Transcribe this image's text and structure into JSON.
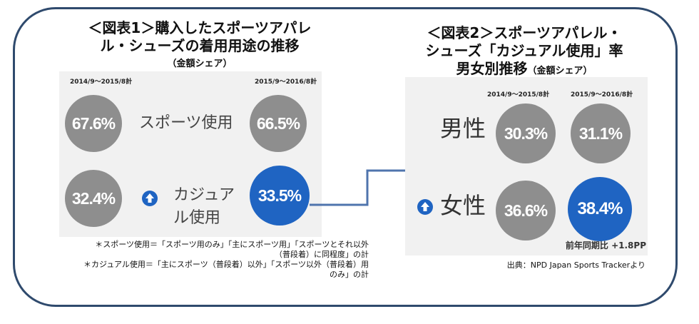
{
  "figure1": {
    "title_line1": "＜図表1＞購入したスポーツアパレ",
    "title_line2": "ル・シューズの着用用途の推移",
    "subtitle": "（金額シェア）",
    "period_left": "2014/9～2015/8計",
    "period_right": "2015/9～2016/8計",
    "row1_label": "スポーツ使用",
    "row2_label_line1": "カジュア",
    "row2_label_line2": "ル使用",
    "notes": [
      "＊スポーツ使用＝「スポーツ用のみ」「主にスポーツ用」「スポーツとそれ以外",
      "（普段着）に同程度」の計",
      "＊カジュアル使用＝「主にスポーツ（普段着）以外」「スポーツ以外（普段着）用",
      "のみ」の計"
    ]
  },
  "figure2": {
    "title_line1": "＜図表2＞スポーツアパレル・",
    "title_line2": "シューズ「カジュアル使用」率",
    "title_line3": "男女別推移",
    "subtitle": "（金額シェア）",
    "period_left": "2014/9～2015/8計",
    "period_right": "2015/9～2016/8計",
    "row1_label": "男性",
    "row2_label": "女性",
    "yoy_note": "前年同期比 +1.8PP",
    "source": "出典：NPD Japan Sports Trackerより"
  },
  "colors": {
    "prior_period": "#8e8e8e",
    "current_period": "#1f64c2",
    "frame": "#2f4a6d"
  },
  "chart_data": [
    {
      "type": "table",
      "title": "＜図表1＞購入したスポーツアパレル・シューズの着用用途の推移",
      "columns": [
        "2014/9～2015/8計",
        "2015/9～2016/8計"
      ],
      "rows": [
        {
          "name": "スポーツ使用",
          "values": [
            "67.6%",
            "66.5%"
          ]
        },
        {
          "name": "カジュアル使用",
          "values": [
            "32.4%",
            "33.5%"
          ]
        }
      ]
    },
    {
      "type": "table",
      "title": "＜図表2＞スポーツアパレル・シューズ「カジュアル使用」率 男女別推移",
      "columns": [
        "2014/9～2015/8計",
        "2015/9～2016/8計"
      ],
      "rows": [
        {
          "name": "男性",
          "values": [
            "30.3%",
            "31.1%"
          ]
        },
        {
          "name": "女性",
          "values": [
            "36.6%",
            "38.4%"
          ]
        }
      ]
    }
  ]
}
